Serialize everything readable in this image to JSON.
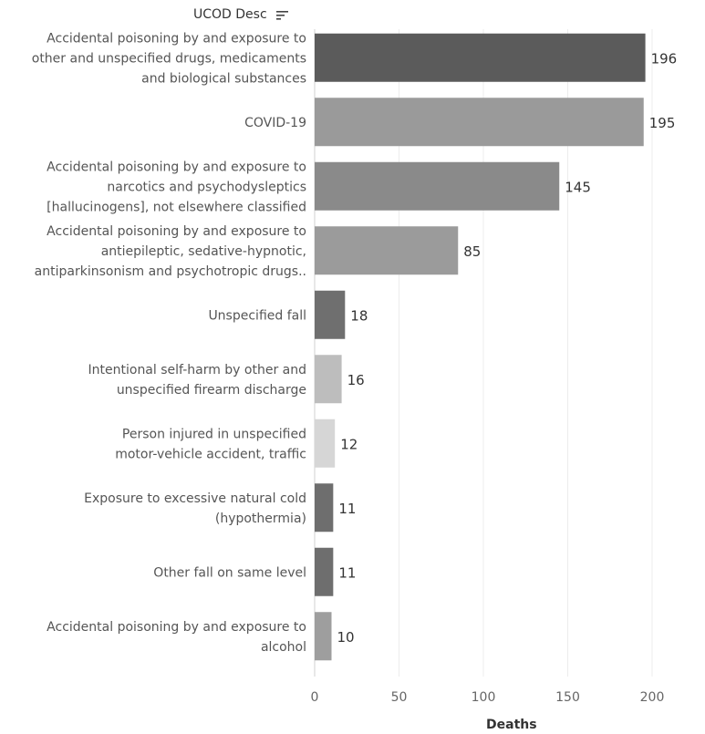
{
  "chart_data": {
    "type": "bar",
    "orientation": "horizontal",
    "y_header": "UCOD Desc",
    "xlabel": "Deaths",
    "xlim": [
      0,
      220
    ],
    "x_ticks": [
      0,
      50,
      100,
      150,
      200
    ],
    "grid": true,
    "sort": "descending",
    "categories": [
      [
        "Accidental poisoning by and exposure to",
        "other and unspecified drugs, medicaments",
        "and biological substances"
      ],
      [
        "COVID-19"
      ],
      [
        "Accidental poisoning by and exposure to",
        "narcotics and psychodysleptics",
        "[hallucinogens], not elsewhere classified"
      ],
      [
        "Accidental poisoning by and exposure to",
        "antiepileptic, sedative-hypnotic,",
        "antiparkinsonism and psychotropic drugs.."
      ],
      [
        "Unspecified fall"
      ],
      [
        "Intentional self-harm by other and",
        "unspecified firearm discharge"
      ],
      [
        "Person injured in unspecified",
        "motor-vehicle accident, traffic"
      ],
      [
        "Exposure to excessive natural cold",
        "(hypothermia)"
      ],
      [
        "Other fall on same level"
      ],
      [
        "Accidental poisoning by and exposure to",
        "alcohol"
      ]
    ],
    "values": [
      196,
      195,
      145,
      85,
      18,
      16,
      12,
      11,
      11,
      10
    ],
    "colors": [
      "#5b5b5b",
      "#9a9a9a",
      "#8a8a8a",
      "#9b9b9b",
      "#6f6f6f",
      "#bdbdbd",
      "#d6d6d6",
      "#6e6e6e",
      "#6e6e6e",
      "#9e9e9e"
    ]
  }
}
